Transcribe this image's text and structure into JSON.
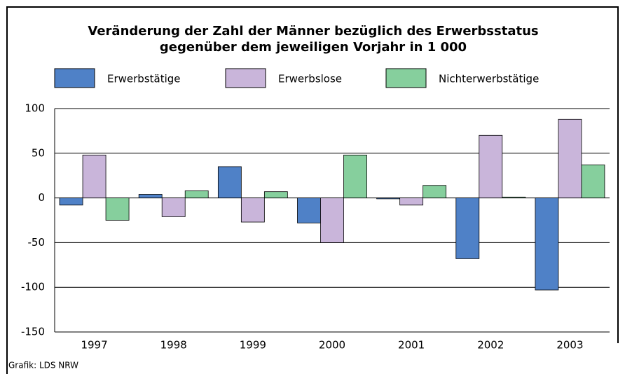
{
  "chart_data": {
    "type": "bar",
    "title": "Veränderung der Zahl der Männer bezüglich des Erwerbsstatus",
    "subtitle": "gegenüber dem jeweiligen Vorjahr in 1 000",
    "categories": [
      "1997",
      "1998",
      "1999",
      "2000",
      "2001",
      "2002",
      "2003"
    ],
    "series": [
      {
        "name": "Erwerbstätige",
        "color": "#4f81c7",
        "values": [
          -8,
          4,
          35,
          -28,
          -1,
          -68,
          -103
        ]
      },
      {
        "name": "Erwerbslose",
        "color": "#c9b5da",
        "values": [
          48,
          -21,
          -27,
          -50,
          -8,
          70,
          88
        ]
      },
      {
        "name": "Nichterwerbstätige",
        "color": "#86cf9d",
        "values": [
          -25,
          8,
          7,
          48,
          14,
          1,
          37
        ]
      }
    ],
    "ylim": [
      -150,
      100
    ],
    "yticks": [
      -150,
      -100,
      -50,
      0,
      50,
      100
    ],
    "grid": true,
    "source": "Grafik: LDS NRW"
  }
}
